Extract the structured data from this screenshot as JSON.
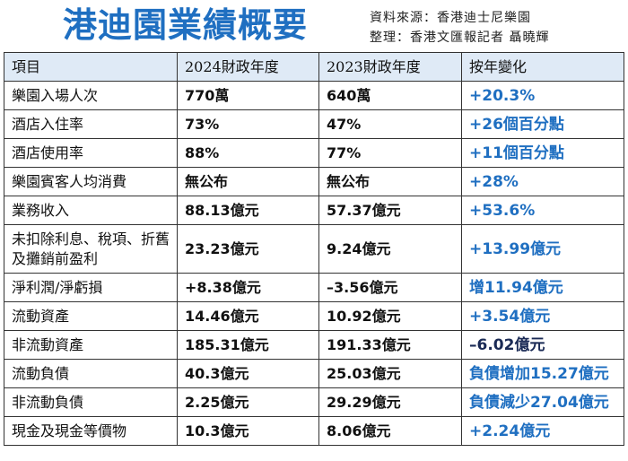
{
  "title": "港迪園業績概要",
  "source_line": "資料來源：香港迪士尼樂園",
  "credit_line": "整理：香港文匯報記者 聶曉輝",
  "headers": [
    "項目",
    "2024財政年度",
    "2023財政年度",
    "按年變化"
  ],
  "rows": [
    {
      "item": "樂園入場人次",
      "fy2024": "770萬",
      "fy2023": "640萬",
      "change": "+20.3%"
    },
    {
      "item": "酒店入住率",
      "fy2024": "73%",
      "fy2023": "47%",
      "change": "+26個百分點"
    },
    {
      "item": "酒店使用率",
      "fy2024": "88%",
      "fy2023": "77%",
      "change": "+11個百分點"
    },
    {
      "item": "樂園賓客人均消費",
      "fy2024": "無公布",
      "fy2023": "無公布",
      "change": "+28%"
    },
    {
      "item": "業務收入",
      "fy2024": "88.13億元",
      "fy2023": "57.37億元",
      "change": "+53.6%"
    },
    {
      "item": "未扣除利息、稅項、折舊及攤銷前盈利",
      "fy2024": "23.23億元",
      "fy2023": "9.24億元",
      "change": "+13.99億元"
    },
    {
      "item": "淨利潤/淨虧損",
      "fy2024": "+8.38億元",
      "fy2023": "–3.56億元",
      "change": "增11.94億元"
    },
    {
      "item": "流動資產",
      "fy2024": "14.46億元",
      "fy2023": "10.92億元",
      "change": "+3.54億元"
    },
    {
      "item": "非流動資產",
      "fy2024": "185.31億元",
      "fy2023": "191.33億元",
      "change": "–6.02億元"
    },
    {
      "item": "流動負債",
      "fy2024": "40.3億元",
      "fy2023": "25.03億元",
      "change": "負債增加15.27億元"
    },
    {
      "item": "非流動負債",
      "fy2024": "2.25億元",
      "fy2023": "29.29億元",
      "change": "負債減少27.04億元"
    },
    {
      "item": "現金及現金等價物",
      "fy2024": "10.3億元",
      "fy2023": "8.06億元",
      "change": "+2.24億元"
    }
  ],
  "colors": {
    "accent": "#1f6fc1",
    "dark_change": "#1a2a55",
    "header_bg": "#dfeaf6"
  }
}
